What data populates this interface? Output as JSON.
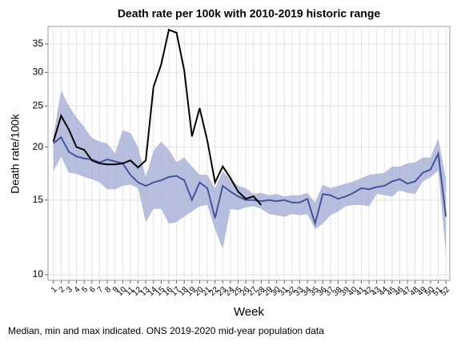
{
  "chart_data": {
    "type": "line",
    "title": "Death rate per 100k with 2010-2019 historic range",
    "x_label": "Week",
    "y_label": "Death rate/100k",
    "annotation": "Median, min and max indicated. ONS 2019-2020 mid-year population data",
    "x": [
      1,
      2,
      3,
      4,
      5,
      6,
      7,
      8,
      9,
      10,
      11,
      12,
      13,
      14,
      15,
      16,
      17,
      18,
      19,
      20,
      21,
      22,
      23,
      24,
      25,
      26,
      27,
      28,
      29,
      30,
      31,
      32,
      33,
      34,
      35,
      36,
      37,
      38,
      39,
      40,
      41,
      42,
      43,
      44,
      45,
      46,
      47,
      48,
      49,
      50,
      51,
      52
    ],
    "xlim": [
      0.3,
      52.5
    ],
    "xticks": [
      1,
      2,
      3,
      4,
      5,
      6,
      7,
      8,
      9,
      10,
      11,
      12,
      13,
      14,
      15,
      16,
      17,
      18,
      19,
      20,
      21,
      22,
      23,
      24,
      25,
      26,
      27,
      28,
      29,
      30,
      31,
      32,
      33,
      34,
      35,
      36,
      37,
      38,
      39,
      40,
      41,
      42,
      43,
      44,
      45,
      46,
      47,
      48,
      49,
      50,
      51,
      52
    ],
    "ylim": [
      9.7,
      38.5
    ],
    "yticks": [
      10,
      15,
      20,
      25,
      30,
      35
    ],
    "log_scale_y": true,
    "grid": true,
    "band": {
      "color": "#aab3d8",
      "lower": [
        17.5,
        19.0,
        17.4,
        17.3,
        17.0,
        16.8,
        16.5,
        15.9,
        15.9,
        16.2,
        16.3,
        16.0,
        13.3,
        14.3,
        14.3,
        13.2,
        13.3,
        13.7,
        14.1,
        14.5,
        14.6,
        12.8,
        11.5,
        14.3,
        14.2,
        14.4,
        14.5,
        14.3,
        13.9,
        13.8,
        13.7,
        13.9,
        13.8,
        13.9,
        12.8,
        13.2,
        13.8,
        14.1,
        14.5,
        14.6,
        14.6,
        14.5,
        15.5,
        15.4,
        15.3,
        15.8,
        15.6,
        15.5,
        16.6,
        17.0,
        17.6,
        11.2
      ],
      "upper": [
        21.3,
        27.2,
        25.0,
        23.5,
        22.3,
        21.0,
        20.6,
        20.4,
        19.3,
        21.9,
        21.6,
        20.0,
        17.0,
        19.6,
        20.6,
        19.7,
        18.4,
        18.9,
        18.0,
        17.2,
        17.2,
        16.0,
        17.5,
        16.8,
        16.2,
        16.0,
        15.5,
        15.6,
        15.4,
        15.5,
        15.3,
        15.4,
        15.4,
        15.6,
        14.8,
        16.3,
        16.0,
        16.2,
        16.4,
        16.6,
        16.9,
        17.2,
        17.3,
        17.4,
        18.0,
        18.0,
        18.3,
        18.4,
        18.9,
        18.9,
        21.0,
        16.8
      ]
    },
    "series": [
      {
        "color": "#46559a",
        "values": [
          20.4,
          21.1,
          19.5,
          19.0,
          18.8,
          18.7,
          18.4,
          18.7,
          18.5,
          18.3,
          17.2,
          16.5,
          16.2,
          16.5,
          16.7,
          17.0,
          17.1,
          16.7,
          15.0,
          16.5,
          16.0,
          13.6,
          16.2,
          15.7,
          15.3,
          15.0,
          15.0,
          14.9,
          15.0,
          14.9,
          15.0,
          14.8,
          14.8,
          15.1,
          13.2,
          15.5,
          15.4,
          15.1,
          15.3,
          15.6,
          16.0,
          15.9,
          16.1,
          16.2,
          16.6,
          16.8,
          16.4,
          16.6,
          17.4,
          17.7,
          19.3,
          13.7
        ]
      },
      {
        "color": "#000000",
        "values": [
          20.6,
          23.7,
          22.0,
          20.0,
          19.7,
          18.6,
          18.3,
          18.2,
          18.2,
          18.3,
          18.6,
          17.9,
          18.6,
          27.7,
          31.3,
          37.8,
          37.2,
          30.3,
          21.2,
          24.7,
          20.7,
          16.5,
          18.0,
          16.9,
          15.7,
          15.1,
          15.3,
          14.6,
          null,
          null,
          null,
          null,
          null,
          null,
          null,
          null,
          null,
          null,
          null,
          null,
          null,
          null,
          null,
          null,
          null,
          null,
          null,
          null,
          null,
          null,
          null,
          null
        ]
      }
    ]
  }
}
